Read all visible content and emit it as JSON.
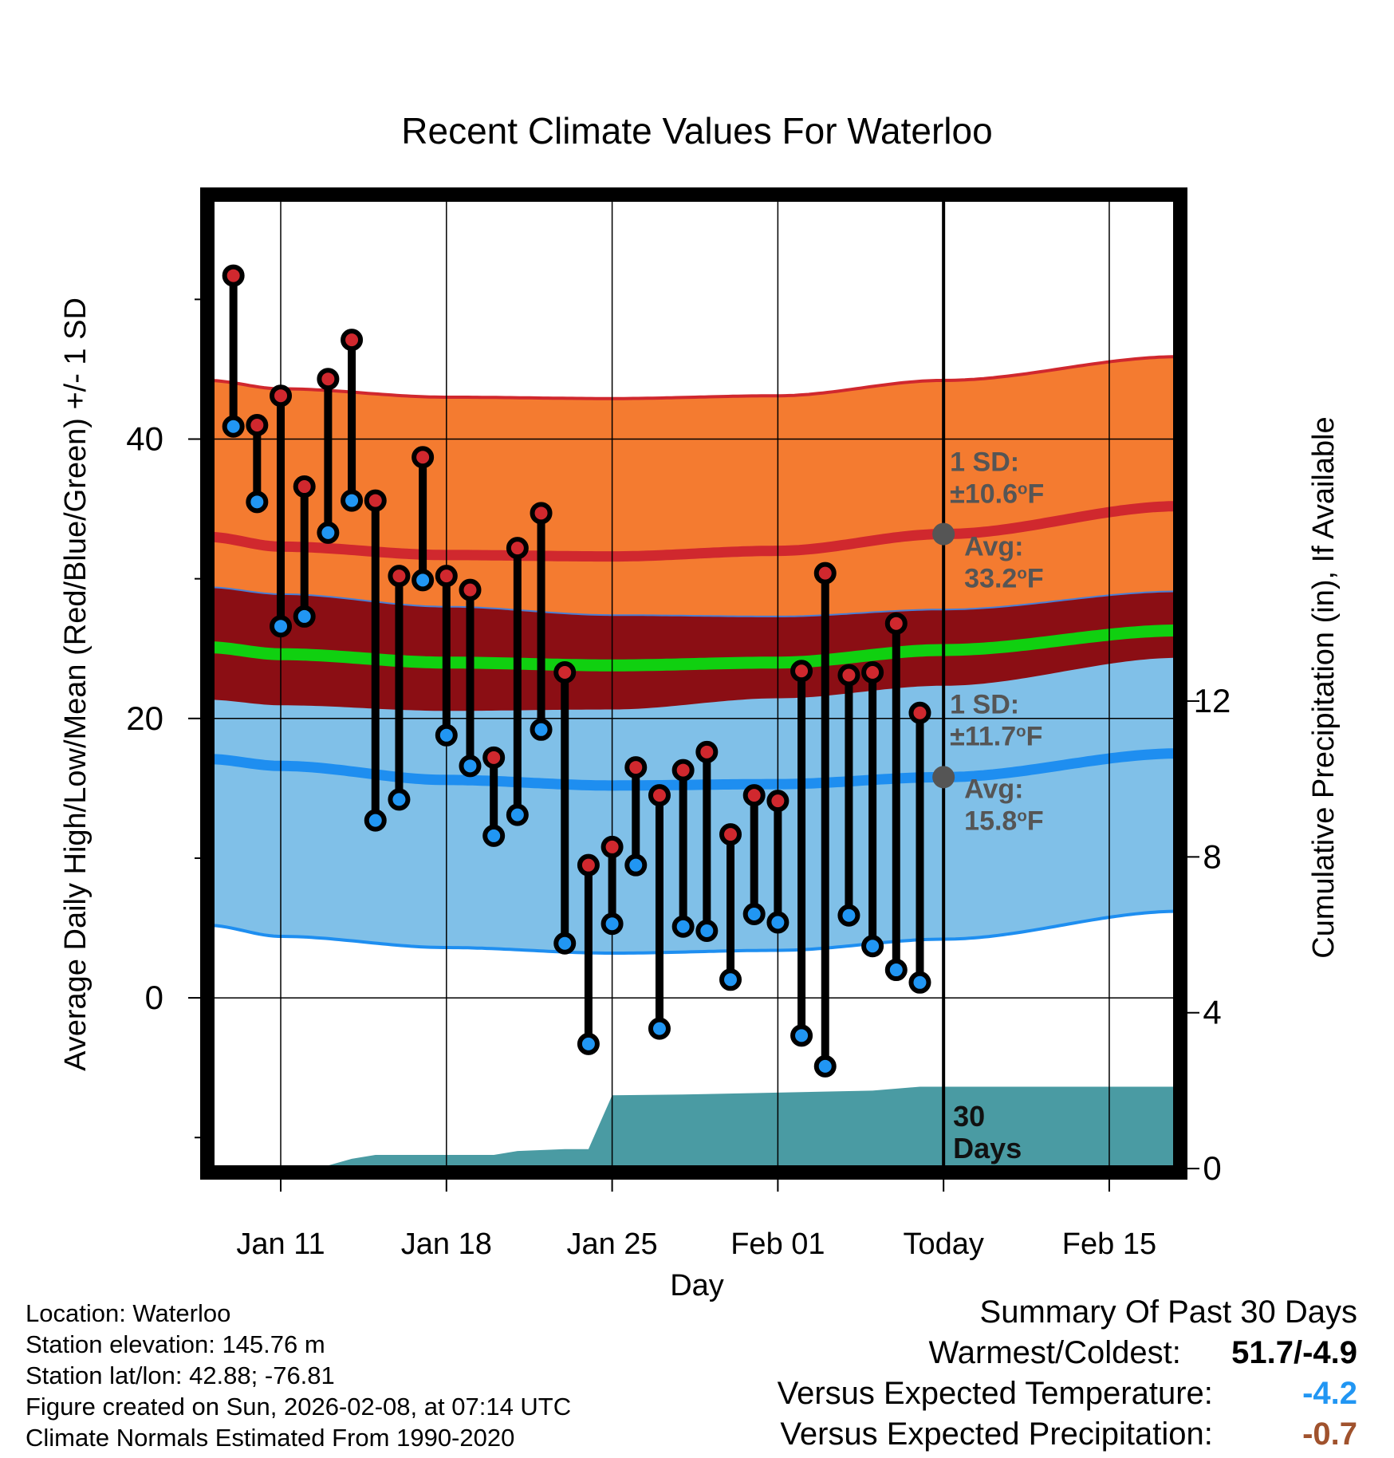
{
  "chart_data": {
    "type": "line",
    "title": "Recent Climate Values For Waterloo",
    "xlabel": "Day",
    "ylabel": "Average Daily High/Low/Mean (Red/Blue/Green) +/- 1 SD",
    "y2label": "Cumulative Precipitation (in), If Available",
    "xlim": [
      -3.1,
      38.0
    ],
    "ylim": [
      -12.5,
      57.5
    ],
    "y2lim": [
      -0.1,
      25.0
    ],
    "x_ticks": [
      {
        "day": 0,
        "label": "Jan 11"
      },
      {
        "day": 7,
        "label": "Jan 18"
      },
      {
        "day": 14,
        "label": "Jan 25"
      },
      {
        "day": 21,
        "label": "Feb 01"
      },
      {
        "day": 28,
        "label": "Today"
      },
      {
        "day": 35,
        "label": "Feb 15"
      }
    ],
    "y_ticks": [
      0,
      20,
      40
    ],
    "y2_ticks": [
      0,
      4,
      8,
      12
    ],
    "today_day": 28,
    "series": [
      {
        "name": "Daily High",
        "color": "#d0282e",
        "values": [
          [
            -2,
            51.7
          ],
          [
            -1,
            41.0
          ],
          [
            0,
            43.1
          ],
          [
            1,
            36.6
          ],
          [
            2,
            44.3
          ],
          [
            3,
            47.1
          ],
          [
            4,
            35.6
          ],
          [
            5,
            30.2
          ],
          [
            6,
            38.7
          ],
          [
            7,
            30.2
          ],
          [
            8,
            29.2
          ],
          [
            9,
            17.2
          ],
          [
            10,
            32.2
          ],
          [
            11,
            34.7
          ],
          [
            12,
            23.3
          ],
          [
            13,
            9.5
          ],
          [
            14,
            10.8
          ],
          [
            15,
            16.5
          ],
          [
            16,
            14.5
          ],
          [
            17,
            16.3
          ],
          [
            18,
            17.6
          ],
          [
            19,
            11.7
          ],
          [
            20,
            14.5
          ],
          [
            21,
            14.1
          ],
          [
            22,
            23.4
          ],
          [
            23,
            30.4
          ],
          [
            24,
            23.1
          ],
          [
            25,
            23.3
          ],
          [
            26,
            26.8
          ],
          [
            27,
            20.4
          ]
        ]
      },
      {
        "name": "Daily Low",
        "color": "#2196f3",
        "values": [
          [
            -2,
            40.9
          ],
          [
            -1,
            35.5
          ],
          [
            0,
            26.6
          ],
          [
            1,
            27.3
          ],
          [
            2,
            33.3
          ],
          [
            3,
            35.6
          ],
          [
            4,
            12.7
          ],
          [
            5,
            14.2
          ],
          [
            6,
            29.9
          ],
          [
            7,
            18.8
          ],
          [
            8,
            16.6
          ],
          [
            9,
            11.6
          ],
          [
            10,
            13.1
          ],
          [
            11,
            19.2
          ],
          [
            12,
            3.9
          ],
          [
            13,
            -3.3
          ],
          [
            14,
            5.3
          ],
          [
            15,
            9.5
          ],
          [
            16,
            -2.2
          ],
          [
            17,
            5.1
          ],
          [
            18,
            4.8
          ],
          [
            19,
            1.3
          ],
          [
            20,
            6.0
          ],
          [
            21,
            5.4
          ],
          [
            22,
            -2.7
          ],
          [
            23,
            -4.9
          ],
          [
            24,
            5.9
          ],
          [
            25,
            3.7
          ],
          [
            26,
            2.0
          ],
          [
            27,
            1.1
          ]
        ]
      },
      {
        "name": "Normal High",
        "color": "#d0282e",
        "values": [
          [
            -3.1,
            33.0
          ],
          [
            0,
            32.3
          ],
          [
            7,
            31.7
          ],
          [
            14,
            31.6
          ],
          [
            21,
            32.0
          ],
          [
            28,
            33.2
          ],
          [
            38,
            35.2
          ]
        ]
      },
      {
        "name": "Normal High +1 SD",
        "color": "#d0282e",
        "values": [
          [
            -3.1,
            44.2
          ],
          [
            0,
            43.6
          ],
          [
            7,
            43.0
          ],
          [
            14,
            42.9
          ],
          [
            21,
            43.1
          ],
          [
            28,
            44.2
          ],
          [
            38,
            45.9
          ]
        ]
      },
      {
        "name": "Normal High -1 SD",
        "color": "#4a7ed4",
        "values": [
          [
            -3.1,
            29.4
          ],
          [
            0,
            28.9
          ],
          [
            7,
            28.0
          ],
          [
            14,
            27.4
          ],
          [
            21,
            27.3
          ],
          [
            28,
            27.8
          ],
          [
            38,
            29.1
          ]
        ]
      },
      {
        "name": "Normal Mean",
        "color": "#10d010",
        "values": [
          [
            -3.1,
            25.1
          ],
          [
            0,
            24.6
          ],
          [
            7,
            24.0
          ],
          [
            14,
            23.8
          ],
          [
            21,
            24.0
          ],
          [
            28,
            24.9
          ],
          [
            38,
            26.3
          ]
        ]
      },
      {
        "name": "Normal Low",
        "color": "#1e8ef0",
        "values": [
          [
            -3.1,
            17.1
          ],
          [
            0,
            16.6
          ],
          [
            7,
            15.6
          ],
          [
            14,
            15.2
          ],
          [
            21,
            15.3
          ],
          [
            28,
            15.8
          ],
          [
            38,
            17.5
          ]
        ]
      },
      {
        "name": "Normal Low +1 SD",
        "color": "#80c0e8",
        "values": [
          [
            -3.1,
            21.4
          ],
          [
            0,
            21.0
          ],
          [
            7,
            20.6
          ],
          [
            14,
            20.7
          ],
          [
            21,
            21.5
          ],
          [
            28,
            22.4
          ],
          [
            38,
            24.4
          ]
        ]
      },
      {
        "name": "Normal Low -1 SD",
        "color": "#1e8ef0",
        "values": [
          [
            -3.1,
            5.2
          ],
          [
            0,
            4.4
          ],
          [
            7,
            3.6
          ],
          [
            14,
            3.2
          ],
          [
            21,
            3.4
          ],
          [
            28,
            4.2
          ],
          [
            38,
            6.2
          ]
        ]
      },
      {
        "name": "Cumulative Precipitation",
        "color": "#4a9ba3",
        "axis": "y2",
        "values": [
          [
            -3.1,
            0
          ],
          [
            -1.2,
            0
          ],
          [
            -1,
            0.08
          ],
          [
            2,
            0.08
          ],
          [
            3,
            0.25
          ],
          [
            4,
            0.35
          ],
          [
            9,
            0.35
          ],
          [
            10,
            0.45
          ],
          [
            12,
            0.5
          ],
          [
            13,
            0.5
          ],
          [
            14,
            1.88
          ],
          [
            17,
            1.9
          ],
          [
            21,
            1.95
          ],
          [
            25,
            2.0
          ],
          [
            27,
            2.1
          ],
          [
            28,
            2.1
          ],
          [
            38,
            2.1
          ]
        ]
      }
    ],
    "annotations": {
      "high_sd_label": "1 SD:",
      "high_sd_value": "±10.6",
      "high_sd_unit": "F",
      "high_avg_label": "Avg:",
      "high_avg_value": "33.2",
      "high_avg_unit": "F",
      "low_sd_label": "1 SD:",
      "low_sd_value": "±11.7",
      "low_sd_unit": "F",
      "low_avg_label": "Avg:",
      "low_avg_value": "15.8",
      "low_avg_unit": "F",
      "degree_symbol": "o",
      "precip_days_number": "30",
      "precip_days_word": "Days"
    }
  },
  "footer_left": {
    "location": "Location: Waterloo",
    "elevation": "Station elevation: 145.76 m",
    "latlon": "Station lat/lon: 42.88; -76.81",
    "created": "Figure created on Sun, 2026-02-08, at 07:14 UTC",
    "normals": "Climate Normals Estimated From 1990-2020"
  },
  "summary": {
    "title": "Summary Of Past 30 Days",
    "warmest_label": "Warmest/Coldest:",
    "warmest_value": "51.7/-4.9",
    "temp_label": "Versus Expected Temperature:",
    "temp_value": "-4.2",
    "temp_color": "#2196f3",
    "precip_label": "Versus Expected Precipitation:",
    "precip_value": "-0.7",
    "precip_color": "#a0522d"
  }
}
